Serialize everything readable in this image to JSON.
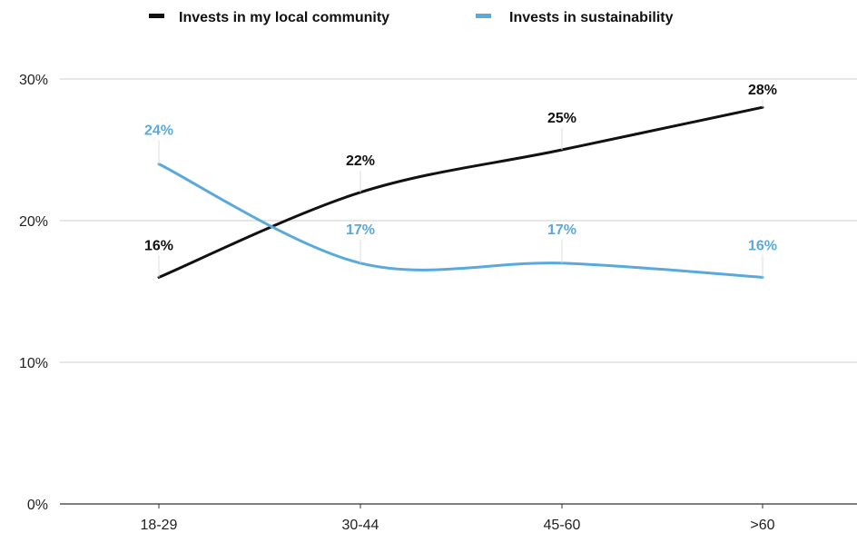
{
  "chart_data": {
    "type": "line",
    "categories": [
      "18-29",
      "30-44",
      "45-60",
      ">60"
    ],
    "series": [
      {
        "name": "Invests in my local community",
        "values": [
          16,
          22,
          25,
          28
        ],
        "labels": [
          "16%",
          "22%",
          "25%",
          "28%"
        ],
        "color": "#111111"
      },
      {
        "name": "Invests in sustainability",
        "values": [
          24,
          17,
          17,
          16
        ],
        "labels": [
          "24%",
          "17%",
          "17%",
          "16%"
        ],
        "color": "#5aa9dd"
      }
    ],
    "yticks": [
      "0%",
      "10%",
      "20%",
      "30%"
    ],
    "ylim": [
      0,
      30
    ],
    "grid": true,
    "legend_position": "top-center",
    "title": "",
    "xlabel": "",
    "ylabel": ""
  }
}
